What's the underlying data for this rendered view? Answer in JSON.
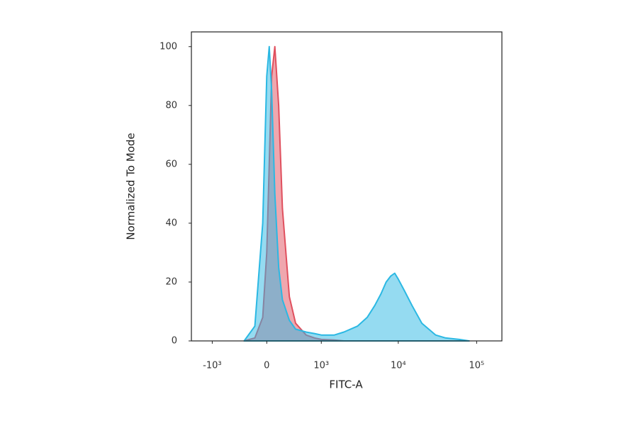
{
  "chart_data": {
    "type": "histogram-overlay",
    "xlabel": "FITC-A",
    "ylabel": "Normalized To Mode",
    "xscale": "biexponential",
    "xlim": [
      -1900,
      210000
    ],
    "xticks": [
      {
        "value": -1000,
        "label": "-10³"
      },
      0,
      {
        "value": 1000,
        "label": "10³"
      },
      {
        "value": 10000,
        "label": "10⁴"
      },
      {
        "value": 100000,
        "label": "10⁵"
      }
    ],
    "ylim": [
      0,
      105
    ],
    "yticks": [
      0,
      20,
      40,
      60,
      80,
      100
    ],
    "x": [
      -300,
      -150,
      -50,
      0,
      30,
      60,
      100,
      150,
      200,
      300,
      400,
      600,
      800,
      1000,
      1500,
      2000,
      3000,
      4000,
      5000,
      6000,
      7000,
      8000,
      9000,
      10000,
      12000,
      15000,
      20000,
      30000,
      40000,
      60000,
      80000
    ],
    "series": [
      {
        "color": "#e0505e",
        "values": [
          0,
          1,
          8,
          30,
          60,
          90,
          100,
          80,
          45,
          15,
          6,
          2,
          1,
          0.5,
          0.3,
          0,
          0,
          0,
          0,
          0,
          0,
          0,
          0,
          0,
          0,
          0,
          0,
          0,
          0,
          0,
          0
        ]
      },
      {
        "color": "#2bb8e3",
        "values": [
          0,
          5,
          40,
          90,
          100,
          85,
          50,
          25,
          14,
          7,
          4,
          3,
          2.5,
          2,
          2,
          3,
          5,
          8,
          12,
          16,
          20,
          22,
          23,
          21,
          17,
          12,
          6,
          2,
          1,
          0.5,
          0
        ]
      }
    ]
  }
}
